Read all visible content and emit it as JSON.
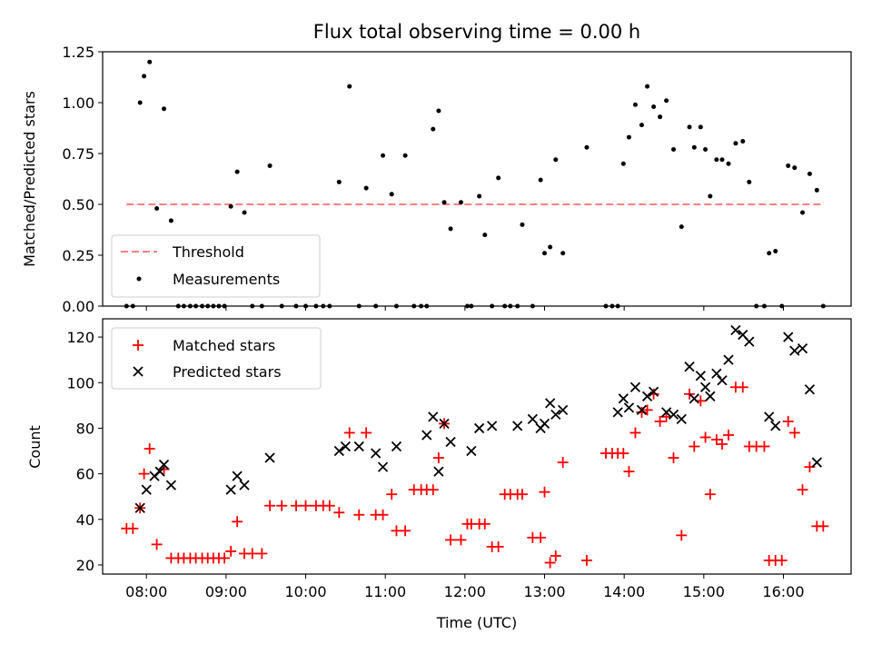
{
  "chart_data": [
    {
      "type": "scatter",
      "title": "Flux total observing time = 0.00 h",
      "xlabel": "",
      "ylabel": "Matched/Predicted stars",
      "ylim": [
        0,
        1.25
      ],
      "yticks": [
        "0.00",
        "0.25",
        "0.50",
        "0.75",
        "1.00",
        "1.25"
      ],
      "xlim": [
        7.45,
        16.85
      ],
      "legend_position": "lower-left",
      "series": [
        {
          "name": "Threshold",
          "style": "dashed-line",
          "color": "#ff7f7f",
          "x": [
            7.75,
            16.5
          ],
          "y": [
            0.5,
            0.5
          ]
        },
        {
          "name": "Measurements",
          "style": "dot",
          "color": "#000000",
          "x": [
            7.75,
            7.83,
            7.92,
            7.97,
            8.04,
            8.13,
            8.22,
            8.31,
            8.4,
            8.47,
            8.55,
            8.62,
            8.7,
            8.77,
            8.84,
            8.91,
            8.98,
            9.06,
            9.14,
            9.23,
            9.33,
            9.45,
            9.55,
            9.7,
            9.88,
            10.0,
            10.13,
            10.22,
            10.3,
            10.42,
            10.55,
            10.67,
            10.76,
            10.88,
            10.97,
            11.08,
            11.14,
            11.25,
            11.36,
            11.45,
            11.52,
            11.6,
            11.67,
            11.74,
            11.82,
            11.95,
            12.03,
            12.08,
            12.18,
            12.25,
            12.34,
            12.42,
            12.5,
            12.57,
            12.66,
            12.72,
            12.85,
            12.95,
            13.0,
            13.07,
            13.14,
            13.23,
            13.53,
            13.77,
            13.85,
            13.92,
            13.99,
            14.06,
            14.14,
            14.22,
            14.29,
            14.37,
            14.45,
            14.53,
            14.62,
            14.72,
            14.82,
            14.88,
            14.96,
            15.02,
            15.08,
            15.16,
            15.23,
            15.31,
            15.4,
            15.49,
            15.57,
            15.66,
            15.76,
            15.82,
            15.9,
            15.98,
            16.06,
            16.14,
            16.24,
            16.33,
            16.42,
            16.5
          ],
          "y": [
            0.0,
            0.0,
            1.0,
            1.13,
            1.2,
            0.48,
            0.97,
            0.42,
            0.0,
            0.0,
            0.0,
            0.0,
            0.0,
            0.0,
            0.0,
            0.0,
            0.0,
            0.49,
            0.66,
            0.46,
            0.0,
            0.0,
            0.69,
            0.0,
            0.0,
            0.0,
            0.0,
            0.0,
            0.0,
            0.61,
            1.08,
            0.0,
            0.58,
            0.0,
            0.74,
            0.55,
            0.0,
            0.74,
            0.0,
            0.0,
            0.0,
            0.87,
            0.96,
            0.51,
            0.38,
            0.51,
            0.0,
            0.0,
            0.54,
            0.35,
            0.0,
            0.63,
            0.0,
            0.0,
            0.0,
            0.4,
            0.0,
            0.62,
            0.26,
            0.29,
            0.72,
            0.26,
            0.78,
            0.0,
            0.0,
            0.0,
            0.7,
            0.83,
            0.99,
            0.89,
            1.08,
            0.98,
            0.93,
            1.01,
            0.77,
            0.39,
            0.88,
            0.78,
            0.88,
            0.77,
            0.54,
            0.72,
            0.72,
            0.7,
            0.8,
            0.81,
            0.61,
            0.0,
            0.0,
            0.26,
            0.27,
            0.0,
            0.69,
            0.68,
            0.46,
            0.65,
            0.57,
            0.0
          ]
        }
      ]
    },
    {
      "type": "scatter",
      "title": "",
      "xlabel": "Time (UTC)",
      "ylabel": "Count",
      "ylim": [
        16,
        128
      ],
      "yticks": [
        "20",
        "40",
        "60",
        "80",
        "100",
        "120"
      ],
      "xlim": [
        7.45,
        16.85
      ],
      "xticks": [
        "08:00",
        "09:00",
        "10:00",
        "11:00",
        "12:00",
        "13:00",
        "14:00",
        "15:00",
        "16:00"
      ],
      "legend_position": "top-left",
      "series": [
        {
          "name": "Matched stars",
          "style": "plus",
          "color": "#ff0000",
          "x": [
            7.75,
            7.83,
            7.92,
            7.97,
            8.04,
            8.13,
            8.22,
            8.31,
            8.4,
            8.47,
            8.55,
            8.62,
            8.7,
            8.77,
            8.84,
            8.91,
            8.98,
            9.06,
            9.14,
            9.23,
            9.33,
            9.45,
            9.55,
            9.7,
            9.88,
            10.0,
            10.13,
            10.22,
            10.3,
            10.42,
            10.55,
            10.67,
            10.76,
            10.88,
            10.97,
            11.08,
            11.14,
            11.25,
            11.36,
            11.45,
            11.52,
            11.6,
            11.67,
            11.74,
            11.82,
            11.95,
            12.03,
            12.08,
            12.18,
            12.25,
            12.34,
            12.42,
            12.5,
            12.57,
            12.66,
            12.72,
            12.85,
            12.95,
            13.0,
            13.07,
            13.14,
            13.23,
            13.53,
            13.77,
            13.85,
            13.92,
            13.99,
            14.06,
            14.14,
            14.22,
            14.29,
            14.37,
            14.45,
            14.53,
            14.62,
            14.72,
            14.82,
            14.88,
            14.96,
            15.02,
            15.08,
            15.16,
            15.23,
            15.31,
            15.4,
            15.49,
            15.57,
            15.66,
            15.76,
            15.82,
            15.9,
            15.98,
            16.06,
            16.14,
            16.24,
            16.33,
            16.42,
            16.5
          ],
          "y": [
            36,
            36,
            45,
            60,
            71,
            29,
            62,
            23,
            23,
            23,
            23,
            23,
            23,
            23,
            23,
            23,
            23,
            26,
            39,
            25,
            25,
            25,
            46,
            46,
            46,
            46,
            46,
            46,
            46,
            43,
            78,
            42,
            78,
            42,
            42,
            51,
            35,
            35,
            53,
            53,
            53,
            53,
            67,
            82,
            31,
            31,
            38,
            38,
            38,
            38,
            28,
            28,
            51,
            51,
            51,
            51,
            32,
            32,
            52,
            21,
            24,
            65,
            22,
            69,
            69,
            69,
            69,
            61,
            78,
            87,
            88,
            95,
            83,
            85,
            67,
            33,
            95,
            72,
            92,
            76,
            51,
            75,
            73,
            77,
            98,
            98,
            72,
            72,
            72,
            22,
            22,
            22,
            83,
            78,
            53,
            63,
            37,
            37
          ]
        },
        {
          "name": "Predicted stars",
          "style": "cross",
          "color": "#000000",
          "x": [
            7.92,
            8.0,
            8.1,
            8.17,
            8.22,
            8.31,
            9.06,
            9.14,
            9.23,
            9.55,
            10.42,
            10.5,
            10.67,
            10.88,
            10.97,
            11.14,
            11.52,
            11.6,
            11.67,
            11.74,
            11.82,
            12.08,
            12.18,
            12.34,
            12.66,
            12.85,
            12.95,
            13.0,
            13.07,
            13.14,
            13.23,
            13.92,
            13.99,
            14.06,
            14.14,
            14.22,
            14.29,
            14.37,
            14.53,
            14.62,
            14.72,
            14.82,
            14.88,
            14.96,
            15.02,
            15.08,
            15.16,
            15.23,
            15.31,
            15.4,
            15.49,
            15.57,
            15.82,
            15.9,
            16.06,
            16.14,
            16.24,
            16.33,
            16.42
          ],
          "y": [
            45,
            53,
            59,
            61,
            64,
            55,
            53,
            59,
            55,
            67,
            70,
            72,
            72,
            69,
            63,
            72,
            77,
            85,
            61,
            82,
            74,
            70,
            80,
            81,
            81,
            84,
            80,
            82,
            91,
            86,
            88,
            87,
            93,
            89,
            98,
            88,
            94,
            96,
            87,
            86,
            84,
            107,
            93,
            103,
            98,
            94,
            104,
            101,
            110,
            123,
            121,
            118,
            85,
            81,
            120,
            114,
            115,
            97,
            65
          ]
        }
      ]
    }
  ]
}
